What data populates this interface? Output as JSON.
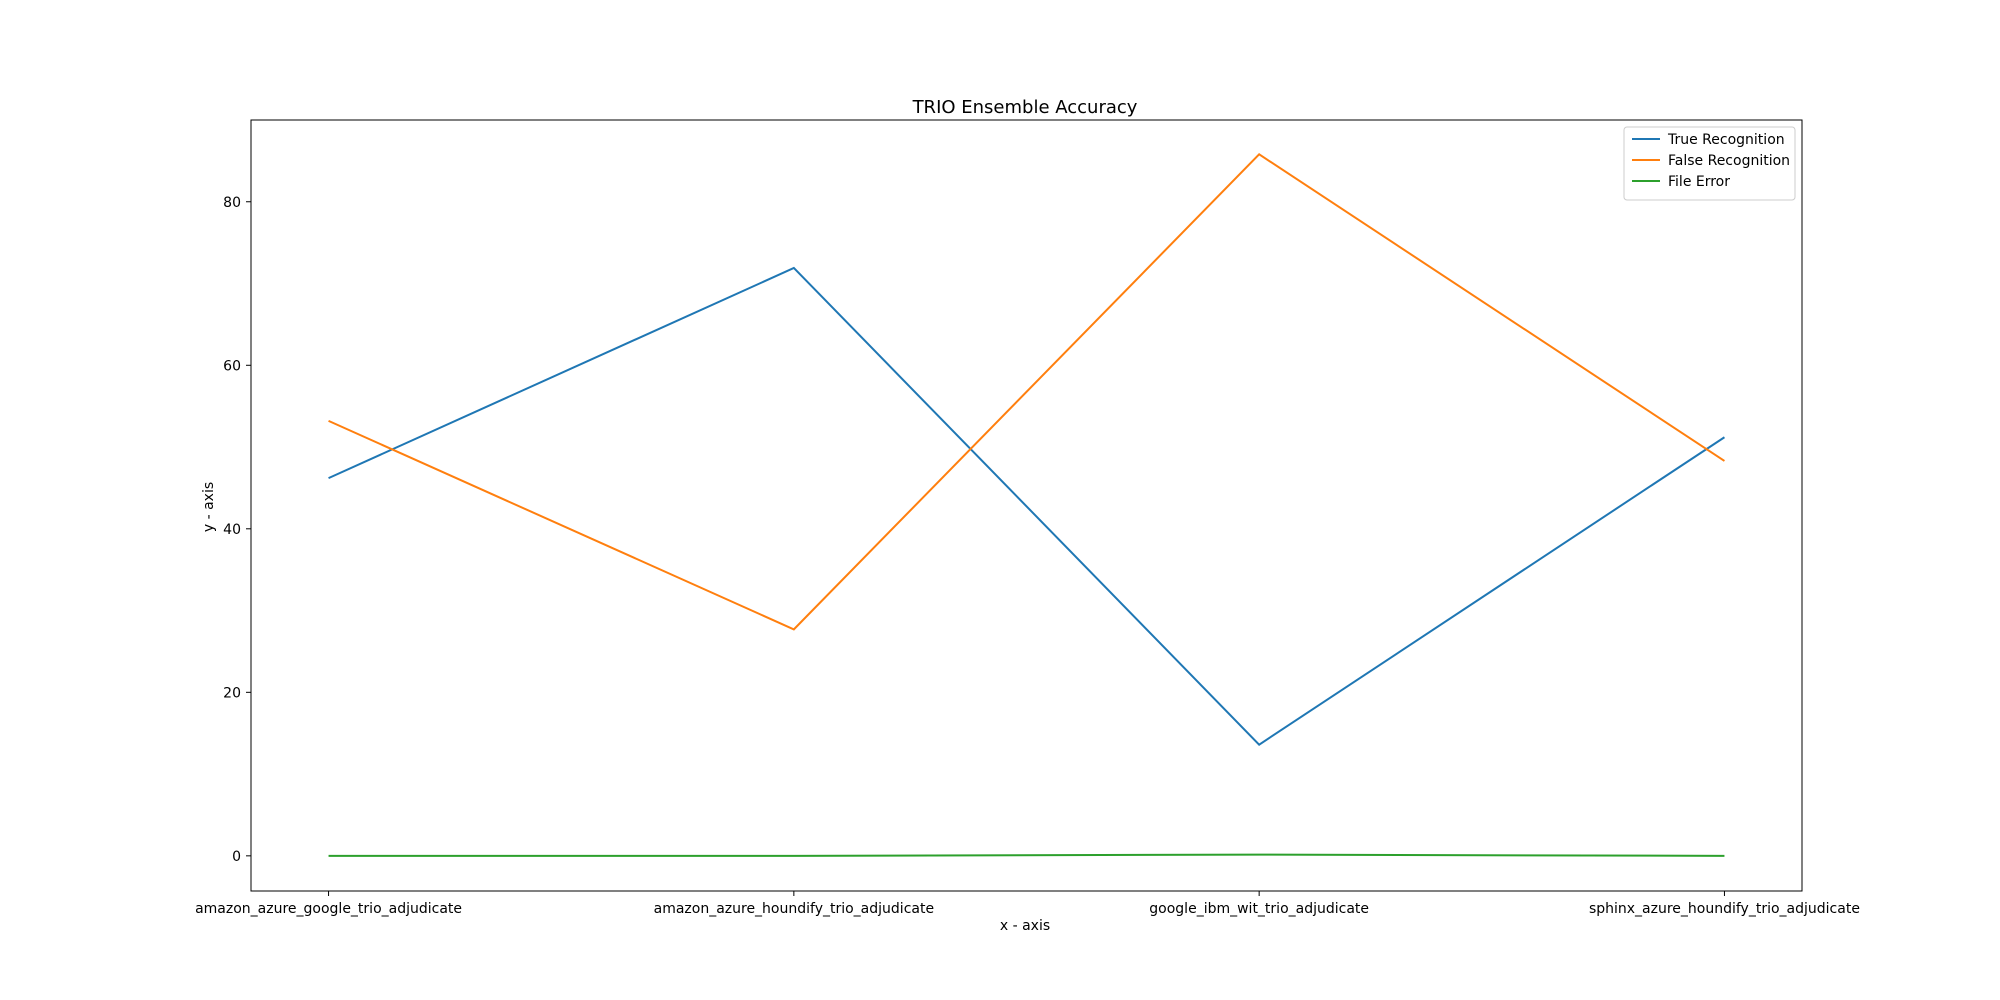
{
  "chart_data": {
    "type": "line",
    "title": "TRIO Ensemble Accuracy",
    "xlabel": "x - axis",
    "ylabel": "y - axis",
    "categories": [
      "amazon_azure_google_trio_adjudicate",
      "amazon_azure_houndify_trio_adjudicate",
      "google_ibm_wit_trio_adjudicate",
      "sphinx_azure_houndify_trio_adjudicate"
    ],
    "series": [
      {
        "name": "True Recognition",
        "color": "#1f77b4",
        "values": [
          46.2,
          71.9,
          13.6,
          51.2
        ]
      },
      {
        "name": "False Recognition",
        "color": "#ff7f0e",
        "values": [
          53.2,
          27.7,
          85.8,
          48.3
        ]
      },
      {
        "name": "File Error",
        "color": "#2ca02c",
        "values": [
          0.0,
          0.0,
          0.15,
          0.0
        ]
      }
    ],
    "ylim": [
      -4.3,
      90.0
    ],
    "yticks": [
      0,
      20,
      40,
      60,
      80
    ],
    "grid": false,
    "legend_position": "top-right"
  }
}
